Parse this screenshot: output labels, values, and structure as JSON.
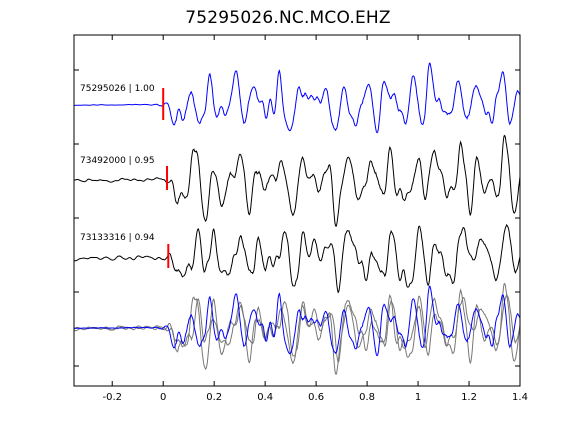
{
  "chart_data": {
    "type": "line",
    "title": "75295026.NC.MCO.EHZ",
    "xlabel": "",
    "ylabel": "",
    "xlim": [
      -0.35,
      1.4
    ],
    "xticks": [
      -0.2,
      0,
      0.2,
      0.4,
      0.6,
      0.8,
      1,
      1.2,
      1.4
    ],
    "xtick_labels": [
      "-0.2",
      "0",
      "0.2",
      "0.4",
      "0.6",
      "0.8",
      "1",
      "1.2",
      "1.4"
    ],
    "grid": false,
    "legend": "none",
    "colors": {
      "primary": "#0000ff",
      "secondary": "#000000",
      "overlay_secondary": "#777777",
      "pick": "#ff0000"
    },
    "series": [
      {
        "name": "75295026 | 1.00",
        "pick_time": 0.0,
        "color": "#0000ff"
      },
      {
        "name": "73492000 | 0.95",
        "pick_time": 0.015,
        "color": "#000000"
      },
      {
        "name": "73133316 | 0.94",
        "pick_time": 0.02,
        "color": "#000000"
      },
      {
        "name": "",
        "overlay": true
      }
    ]
  }
}
